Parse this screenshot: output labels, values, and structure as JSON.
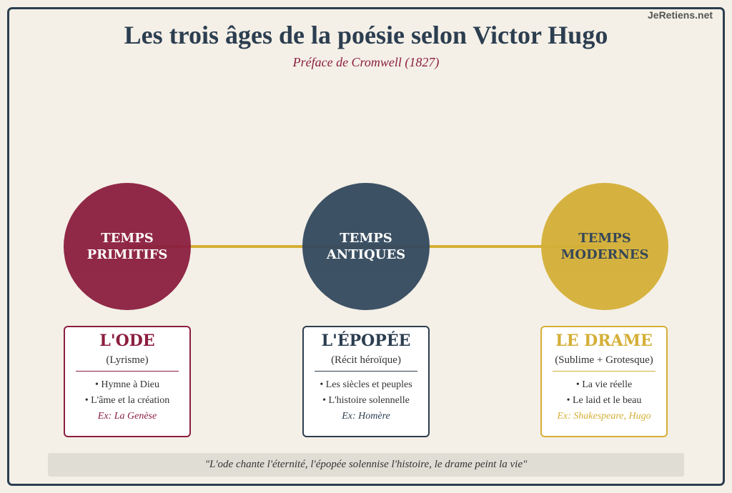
{
  "header": {
    "title": "Les trois âges de la poésie selon Victor Hugo",
    "subtitle": "Préface de Cromwell (1827)",
    "brand": "JeRetiens.net"
  },
  "colors": {
    "ode": "#8b1e3f",
    "epopee": "#2c3e50",
    "drame": "#d4af37",
    "background": "#f4f0e7"
  },
  "ages": [
    {
      "circle": [
        "TEMPS",
        "PRIMITIFS"
      ],
      "genre": "L'ODE",
      "sub": "(Lyrisme)",
      "points": [
        "• Hymne à Dieu",
        "• L'âme et la création"
      ],
      "example": "Ex: La Genèse"
    },
    {
      "circle": [
        "TEMPS",
        "ANTIQUES"
      ],
      "genre": "L'ÉPOPÉE",
      "sub": "(Récit héroïque)",
      "points": [
        "• Les siècles et peuples",
        "• L'histoire solennelle"
      ],
      "example": "Ex: Homère"
    },
    {
      "circle": [
        "TEMPS",
        "MODERNES"
      ],
      "genre": "LE DRAME",
      "sub": "(Sublime + Grotesque)",
      "points": [
        "• La vie réelle",
        "• Le laid et le beau"
      ],
      "example": "Ex: Shakespeare, Hugo"
    }
  ],
  "quote": "\"L'ode chante l'éternité, l'épopée solennise l'histoire, le drame peint la vie\""
}
